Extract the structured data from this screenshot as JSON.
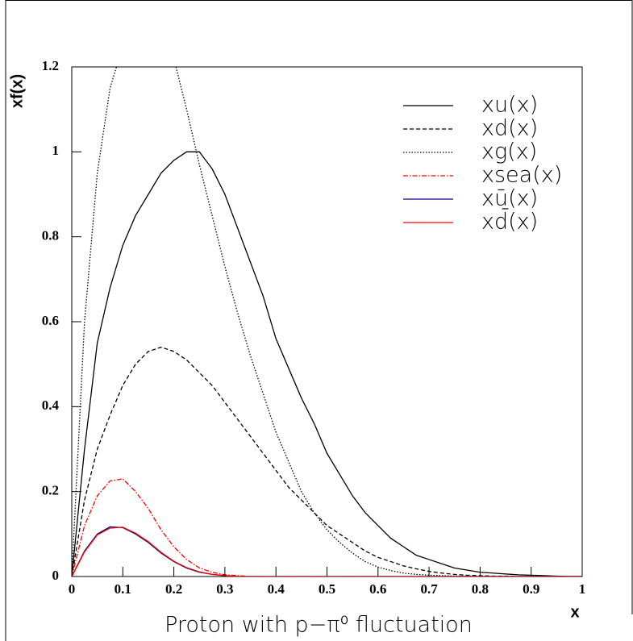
{
  "chart_data": {
    "type": "line",
    "title": "Proton with p−π⁰ fluctuation",
    "x_label": "x",
    "y_label": "xf(x)",
    "x": [
      0,
      0.025,
      0.05,
      0.075,
      0.1,
      0.125,
      0.15,
      0.175,
      0.2,
      0.225,
      0.25,
      0.275,
      0.3,
      0.325,
      0.35,
      0.375,
      0.4,
      0.425,
      0.45,
      0.475,
      0.5,
      0.525,
      0.55,
      0.575,
      0.6,
      0.625,
      0.65,
      0.675,
      0.7,
      0.725,
      0.75,
      0.775,
      0.8,
      0.825,
      0.85,
      0.875,
      0.9,
      0.925,
      0.95,
      0.975,
      1
    ],
    "series": [
      {
        "name": "xu(x)",
        "color": "#000000",
        "dash": "none",
        "values": [
          0,
          0.3,
          0.55,
          0.68,
          0.78,
          0.85,
          0.9,
          0.95,
          0.98,
          1.0,
          1.0,
          0.96,
          0.9,
          0.82,
          0.74,
          0.66,
          0.56,
          0.49,
          0.42,
          0.36,
          0.29,
          0.24,
          0.19,
          0.15,
          0.12,
          0.09,
          0.07,
          0.05,
          0.04,
          0.03,
          0.02,
          0.015,
          0.01,
          0.008,
          0.006,
          0.004,
          0.003,
          0.002,
          0.001,
          0,
          0
        ]
      },
      {
        "name": "xd(x)",
        "color": "#000000",
        "dash": "5 3",
        "values": [
          0,
          0.18,
          0.3,
          0.38,
          0.45,
          0.5,
          0.53,
          0.54,
          0.53,
          0.51,
          0.48,
          0.45,
          0.41,
          0.37,
          0.33,
          0.29,
          0.25,
          0.21,
          0.18,
          0.15,
          0.12,
          0.1,
          0.08,
          0.06,
          0.045,
          0.035,
          0.025,
          0.018,
          0.012,
          0.008,
          0.005,
          0.003,
          0.002,
          0.001,
          0.001,
          0,
          0,
          0,
          0,
          0,
          0
        ]
      },
      {
        "name": "xg(x)",
        "color": "#000000",
        "dash": "1.5 2",
        "values": [
          0,
          0.6,
          0.95,
          1.15,
          1.25,
          1.3,
          1.32,
          1.3,
          1.22,
          1.1,
          0.97,
          0.85,
          0.73,
          0.62,
          0.52,
          0.43,
          0.34,
          0.27,
          0.2,
          0.15,
          0.11,
          0.08,
          0.055,
          0.035,
          0.022,
          0.014,
          0.008,
          0.005,
          0.003,
          0.002,
          0.001,
          0.001,
          0,
          0,
          0,
          0,
          0,
          0,
          0,
          0,
          0
        ]
      },
      {
        "name": "xsea(x)",
        "color": "#ff0000",
        "dash": "6 2 1.5 2",
        "values": [
          0,
          0.12,
          0.19,
          0.225,
          0.23,
          0.2,
          0.16,
          0.11,
          0.07,
          0.04,
          0.02,
          0.01,
          0.004,
          0.002,
          0,
          0,
          0,
          0,
          0,
          0,
          0,
          0,
          0,
          0,
          0,
          0,
          0,
          0,
          0,
          0,
          0,
          0,
          0,
          0,
          0,
          0,
          0,
          0,
          0,
          0,
          0
        ]
      },
      {
        "name": "xū(x)",
        "color": "#00008b",
        "dash": "none",
        "values": [
          0,
          0.06,
          0.1,
          0.117,
          0.115,
          0.1,
          0.08,
          0.055,
          0.035,
          0.02,
          0.01,
          0.005,
          0.002,
          0,
          0,
          0,
          0,
          0,
          0,
          0,
          0,
          0,
          0,
          0,
          0,
          0,
          0,
          0,
          0,
          0,
          0,
          0,
          0,
          0,
          0,
          0,
          0,
          0,
          0,
          0,
          0
        ]
      },
      {
        "name": "xd̄(x)",
        "color": "#ff0000",
        "dash": "none",
        "values": [
          0,
          0.058,
          0.098,
          0.114,
          0.116,
          0.102,
          0.082,
          0.057,
          0.036,
          0.021,
          0.011,
          0.005,
          0.002,
          0,
          0,
          0,
          0,
          0,
          0,
          0,
          0,
          0,
          0,
          0,
          0,
          0,
          0,
          0,
          0,
          0,
          0,
          0,
          0,
          0,
          0,
          0,
          0,
          0,
          0,
          0,
          0
        ]
      }
    ],
    "xlim": [
      0,
      1
    ],
    "ylim": [
      0,
      1.2
    ],
    "xticks": [
      0,
      0.1,
      0.2,
      0.3,
      0.4,
      0.5,
      0.6,
      0.7,
      0.8,
      0.9,
      1
    ],
    "yticks": [
      0,
      0.2,
      0.4,
      0.6,
      0.8,
      1,
      1.2
    ],
    "legend": "top-right"
  }
}
